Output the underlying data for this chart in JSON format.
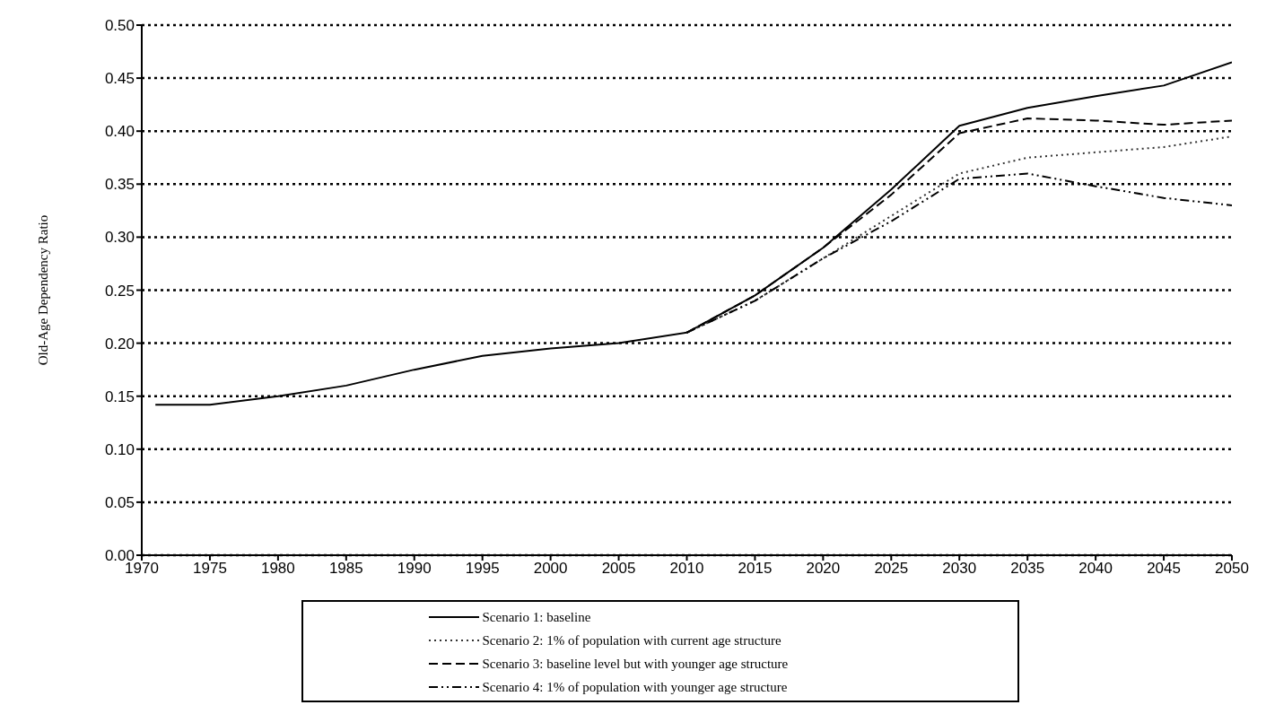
{
  "chart_data": {
    "type": "line",
    "ylabel": "Old-Age Dependency Ratio",
    "x": [
      1971,
      1975,
      1980,
      1985,
      1990,
      1995,
      2000,
      2005,
      2010,
      2015,
      2020,
      2025,
      2030,
      2035,
      2040,
      2045,
      2050
    ],
    "series": [
      {
        "name": "Scenario 1: baseline",
        "color": "#000000",
        "line_style": "solid",
        "values": [
          0.142,
          0.142,
          0.15,
          0.16,
          0.175,
          0.188,
          0.195,
          0.2,
          0.21,
          0.245,
          0.29,
          0.345,
          0.405,
          0.422,
          0.433,
          0.443,
          0.465
        ]
      },
      {
        "name": "Scenario 2: 1% of population with current age structure",
        "color": "#333333",
        "line_style": "dotted",
        "x": [
          2010,
          2015,
          2020,
          2025,
          2030,
          2035,
          2040,
          2045,
          2050
        ],
        "values": [
          0.21,
          0.24,
          0.28,
          0.32,
          0.36,
          0.375,
          0.38,
          0.385,
          0.395
        ]
      },
      {
        "name": "Scenario 3: baseline level but with younger age structure",
        "color": "#000000",
        "line_style": "dashed",
        "x": [
          2010,
          2015,
          2020,
          2025,
          2030,
          2035,
          2040,
          2045,
          2050
        ],
        "values": [
          0.21,
          0.245,
          0.29,
          0.34,
          0.398,
          0.412,
          0.41,
          0.406,
          0.41
        ]
      },
      {
        "name": "Scenario 4: 1% of population with younger age structure",
        "color": "#000000",
        "line_style": "dashdot",
        "x": [
          2010,
          2015,
          2020,
          2025,
          2030,
          2035,
          2040,
          2045,
          2050
        ],
        "values": [
          0.21,
          0.24,
          0.28,
          0.315,
          0.355,
          0.36,
          0.348,
          0.337,
          0.33
        ]
      }
    ],
    "xlim": [
      1970,
      2050
    ],
    "xticks": [
      1970,
      1975,
      1980,
      1985,
      1990,
      1995,
      2000,
      2005,
      2010,
      2015,
      2020,
      2025,
      2030,
      2035,
      2040,
      2045,
      2050
    ],
    "ylim": [
      0,
      0.5
    ],
    "yticks": [
      {
        "value": 0,
        "label": "0.00"
      },
      {
        "value": 0.05,
        "label": "0.05"
      },
      {
        "value": 0.1,
        "label": "0.10"
      },
      {
        "value": 0.15,
        "label": "0.15"
      },
      {
        "value": 0.2,
        "label": "0.20"
      },
      {
        "value": 0.25,
        "label": "0.25"
      },
      {
        "value": 0.3,
        "label": "0.30"
      },
      {
        "value": 0.35,
        "label": "0.35"
      },
      {
        "value": 0.4,
        "label": "0.40"
      },
      {
        "value": 0.45,
        "label": "0.45"
      },
      {
        "value": 0.5,
        "label": "0.50"
      }
    ],
    "grid": "y",
    "legend": "bottom",
    "marker": "none"
  }
}
